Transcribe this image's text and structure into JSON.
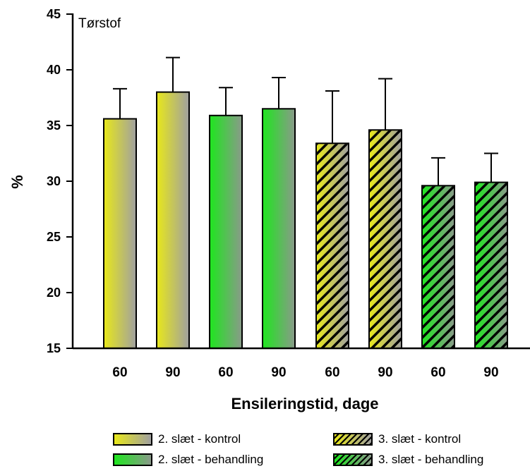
{
  "chart_data": {
    "type": "bar",
    "title": "Tørstof",
    "xlabel": "Ensileringstid, dage",
    "ylabel": "%",
    "ylim": [
      15,
      45
    ],
    "yticks": [
      15,
      20,
      25,
      30,
      35,
      40,
      45
    ],
    "categories": [
      "60",
      "90",
      "60",
      "90",
      "60",
      "90",
      "60",
      "90"
    ],
    "bars": [
      {
        "category": "60",
        "series": "2. slæt - kontrol",
        "value": 35.6,
        "error": 2.7
      },
      {
        "category": "90",
        "series": "2. slæt - kontrol",
        "value": 38.0,
        "error": 3.1
      },
      {
        "category": "60",
        "series": "2. slæt - behandling",
        "value": 35.9,
        "error": 2.5
      },
      {
        "category": "90",
        "series": "2. slæt - behandling",
        "value": 36.5,
        "error": 2.8
      },
      {
        "category": "60",
        "series": "3. slæt - kontrol",
        "value": 33.4,
        "error": 4.7
      },
      {
        "category": "90",
        "series": "3. slæt - kontrol",
        "value": 34.6,
        "error": 4.6
      },
      {
        "category": "60",
        "series": "3. slæt - behandling",
        "value": 29.6,
        "error": 2.5
      },
      {
        "category": "90",
        "series": "3. slæt - behandling",
        "value": 29.9,
        "error": 2.6
      }
    ],
    "series": [
      {
        "name": "2. slæt - kontrol",
        "color": "#e6e620",
        "fill": "gradient",
        "hatched": false
      },
      {
        "name": "3. slæt - kontrol",
        "color": "#e6e620",
        "fill": "gradient",
        "hatched": true
      },
      {
        "name": "2. slæt - behandling",
        "color": "#1ee61e",
        "fill": "gradient",
        "hatched": false
      },
      {
        "name": "3. slæt - behandling",
        "color": "#1ee61e",
        "fill": "gradient",
        "hatched": true
      }
    ],
    "grid": false,
    "legend_position": "bottom"
  }
}
